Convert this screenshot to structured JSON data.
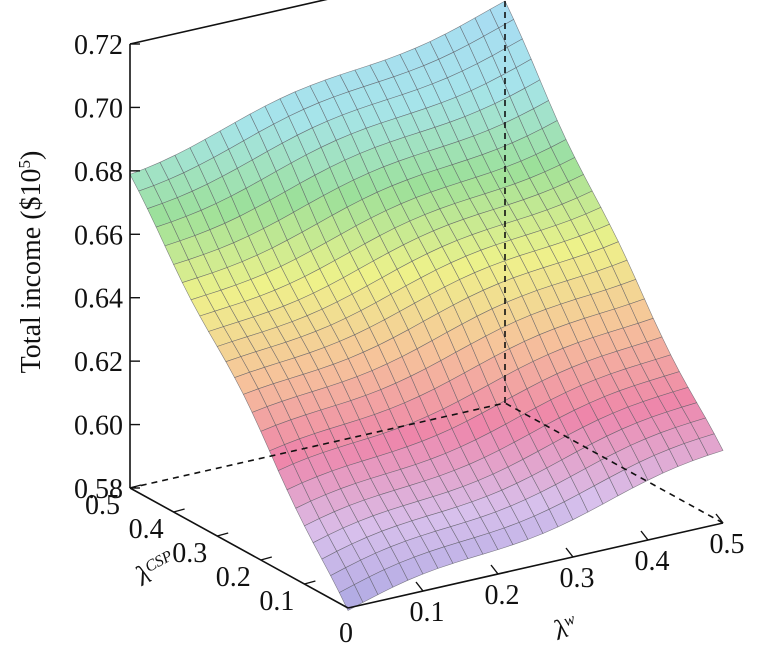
{
  "chart_data": {
    "type": "surface",
    "title": "",
    "zlabel_main": "Total income ($10",
    "zlabel_sup": "5",
    "zlabel_close": ")",
    "xlabel_main": "λ",
    "xlabel_sup": "w",
    "ylabel_main": "λ",
    "ylabel_sup": "CSP",
    "zlim": [
      0.58,
      0.72
    ],
    "z_ticks": [
      "0.58",
      "0.60",
      "0.62",
      "0.64",
      "0.66",
      "0.68",
      "0.70",
      "0.72"
    ],
    "x_ticks": [
      "0.1",
      "0.2",
      "0.3",
      "0.4",
      "0.5"
    ],
    "y_ticks": [
      "0.1",
      "0.2",
      "0.3",
      "0.4",
      "0.5"
    ],
    "origin_tick": "0",
    "x_range": [
      0,
      0.5
    ],
    "y_range": [
      0,
      0.5
    ],
    "corner_values": [
      {
        "lambda_w": 0.0,
        "lambda_csp": 0.0,
        "income": 0.578
      },
      {
        "lambda_w": 0.5,
        "lambda_csp": 0.0,
        "income": 0.601
      },
      {
        "lambda_w": 0.0,
        "lambda_csp": 0.5,
        "income": 0.679
      },
      {
        "lambda_w": 0.5,
        "lambda_csp": 0.5,
        "income": 0.705
      }
    ],
    "colormap": [
      "#a9a6e2",
      "#d8c0ec",
      "#ee86aa",
      "#f6c49a",
      "#eef28a",
      "#9ce09a",
      "#a6e4ea",
      "#a8dcf2"
    ]
  }
}
